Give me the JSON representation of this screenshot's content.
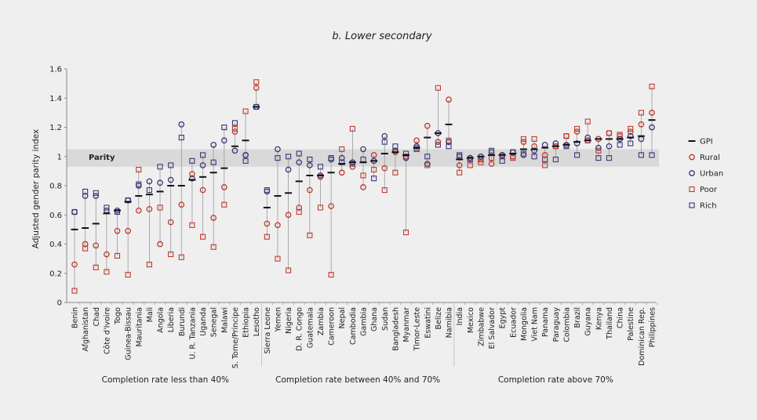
{
  "chart_data": {
    "type": "scatter",
    "title": "b. Lower secondary",
    "ylabel": "Adjusted gender parity index",
    "ylim": [
      0,
      1.6
    ],
    "yticks": [
      "0",
      "0.2",
      "0.4",
      "0.6",
      "0.8",
      "1",
      "1.2",
      "1.4",
      "1.6"
    ],
    "parity_band": {
      "label": "Parity",
      "from": 0.93,
      "to": 1.05
    },
    "legend_position": "right",
    "legend": [
      {
        "key": "gpi",
        "label": "GPI",
        "color": "#111111",
        "marker": "dash"
      },
      {
        "key": "rural",
        "label": "Rural",
        "color": "#c0392b",
        "marker": "circle"
      },
      {
        "key": "urban",
        "label": "Urban",
        "color": "#3a3577",
        "marker": "circle"
      },
      {
        "key": "poor",
        "label": "Poor",
        "color": "#c0392b",
        "marker": "square"
      },
      {
        "key": "rich",
        "label": "Rich",
        "color": "#3a3577",
        "marker": "square"
      }
    ],
    "groups": [
      {
        "label": "Completion rate less than 40%",
        "countries": [
          "Benin",
          "Afghanistan",
          "Chad",
          "Côte d'Ivoire",
          "Togo",
          "Guinea-Bissau",
          "Mauritania",
          "Mali",
          "Angola",
          "Liberia",
          "Burundi",
          "U. R. Tanzania",
          "Uganda",
          "Senegal",
          "Malawi",
          "S. Tome/Principe",
          "Ethiopia",
          "Lesotho"
        ]
      },
      {
        "label": "Completion rate between 40% and 70%",
        "countries": [
          "Sierra Leone",
          "Yemen",
          "Nigeria",
          "D. R. Congo",
          "Guatemala",
          "Zambia",
          "Cameroon",
          "Nepal",
          "Cambodia",
          "Gambia",
          "Ghana",
          "Sudan",
          "Bangladesh",
          "Myanmar",
          "Timor-Leste",
          "Eswatini",
          "Belize",
          "Namibia"
        ]
      },
      {
        "label": "Completion rate above 70%",
        "countries": [
          "India",
          "Mexico",
          "Zimbabwe",
          "El Salvador",
          "Egypt",
          "Ecuador",
          "Mongolia",
          "Viet Nam",
          "Panama",
          "Paraguay",
          "Colombia",
          "Brazil",
          "Guyana",
          "Kenya",
          "Thailand",
          "China",
          "Palestine",
          "Dominican Rep.",
          "Philippines"
        ]
      }
    ],
    "series": [
      {
        "key": "gpi",
        "values": [
          0.5,
          0.51,
          0.54,
          0.61,
          0.63,
          0.69,
          0.73,
          0.74,
          0.76,
          0.8,
          0.8,
          0.84,
          0.86,
          0.89,
          0.92,
          1.07,
          1.11,
          1.34,
          0.65,
          0.73,
          0.75,
          0.83,
          0.87,
          0.87,
          0.89,
          0.95,
          0.96,
          0.96,
          0.97,
          1.02,
          1.03,
          1.01,
          1.06,
          1.13,
          1.16,
          1.22,
          0.98,
          0.99,
          1.0,
          1.01,
          1.01,
          1.02,
          1.05,
          1.05,
          1.06,
          1.07,
          1.08,
          1.1,
          1.11,
          1.12,
          1.12,
          1.12,
          1.13,
          1.14,
          1.25
        ]
      },
      {
        "key": "rural",
        "values": [
          0.26,
          0.4,
          0.39,
          0.33,
          0.49,
          0.49,
          0.63,
          0.64,
          0.4,
          0.55,
          0.67,
          0.88,
          0.77,
          0.58,
          0.79,
          1.17,
          1.01,
          1.47,
          0.54,
          0.53,
          0.6,
          0.65,
          0.77,
          0.86,
          0.66,
          0.89,
          0.93,
          0.79,
          1.01,
          0.92,
          1.03,
          1.0,
          1.11,
          1.21,
          1.1,
          1.39,
          0.94,
          0.99,
          0.98,
          0.95,
          1.01,
          1.0,
          1.1,
          1.07,
          1.01,
          1.07,
          1.14,
          1.17,
          1.11,
          1.12,
          1.16,
          1.14,
          1.17,
          1.22,
          1.3
        ]
      },
      {
        "key": "urban",
        "values": [
          0.62,
          0.73,
          0.73,
          0.63,
          0.63,
          0.7,
          0.8,
          0.83,
          0.82,
          0.84,
          1.22,
          0.85,
          0.94,
          1.08,
          1.11,
          1.04,
          1.01,
          1.34,
          0.76,
          1.05,
          0.91,
          0.96,
          0.94,
          0.87,
          0.98,
          0.99,
          0.96,
          1.05,
          0.97,
          1.14,
          1.04,
          0.99,
          1.07,
          0.95,
          1.16,
          1.1,
          1.0,
          0.99,
          1.0,
          1.03,
          1.01,
          1.03,
          1.01,
          1.04,
          1.08,
          1.09,
          1.08,
          1.09,
          1.13,
          1.06,
          1.07,
          1.12,
          1.14,
          1.12,
          1.2
        ]
      },
      {
        "key": "poor",
        "values": [
          0.08,
          0.37,
          0.24,
          0.21,
          0.32,
          0.19,
          0.91,
          0.26,
          0.65,
          0.33,
          0.31,
          0.53,
          0.45,
          0.38,
          0.67,
          1.19,
          1.31,
          1.51,
          0.45,
          0.3,
          0.22,
          0.62,
          0.46,
          0.65,
          0.19,
          1.05,
          1.19,
          0.87,
          0.91,
          0.77,
          0.89,
          0.48,
          1.06,
          0.94,
          1.47,
          1.11,
          0.89,
          0.94,
          0.96,
          0.99,
          1.0,
          0.99,
          1.12,
          1.12,
          0.94,
          1.07,
          1.14,
          1.19,
          1.24,
          1.04,
          1.16,
          1.15,
          1.19,
          1.3,
          1.48
        ]
      },
      {
        "key": "rich",
        "values": [
          0.62,
          0.76,
          0.75,
          0.65,
          0.62,
          0.7,
          0.81,
          0.77,
          0.93,
          0.94,
          1.13,
          0.97,
          1.01,
          0.96,
          1.2,
          1.23,
          0.97,
          1.34,
          0.77,
          0.99,
          1.0,
          1.02,
          0.98,
          0.93,
          0.99,
          0.96,
          0.95,
          0.98,
          0.85,
          1.1,
          1.07,
          1.02,
          1.05,
          1.0,
          1.08,
          1.07,
          1.01,
          0.98,
          0.98,
          1.04,
          0.97,
          1.03,
          1.02,
          1.0,
          0.98,
          0.98,
          1.07,
          1.01,
          1.11,
          0.99,
          0.99,
          1.08,
          1.09,
          1.01,
          1.01
        ]
      }
    ]
  }
}
